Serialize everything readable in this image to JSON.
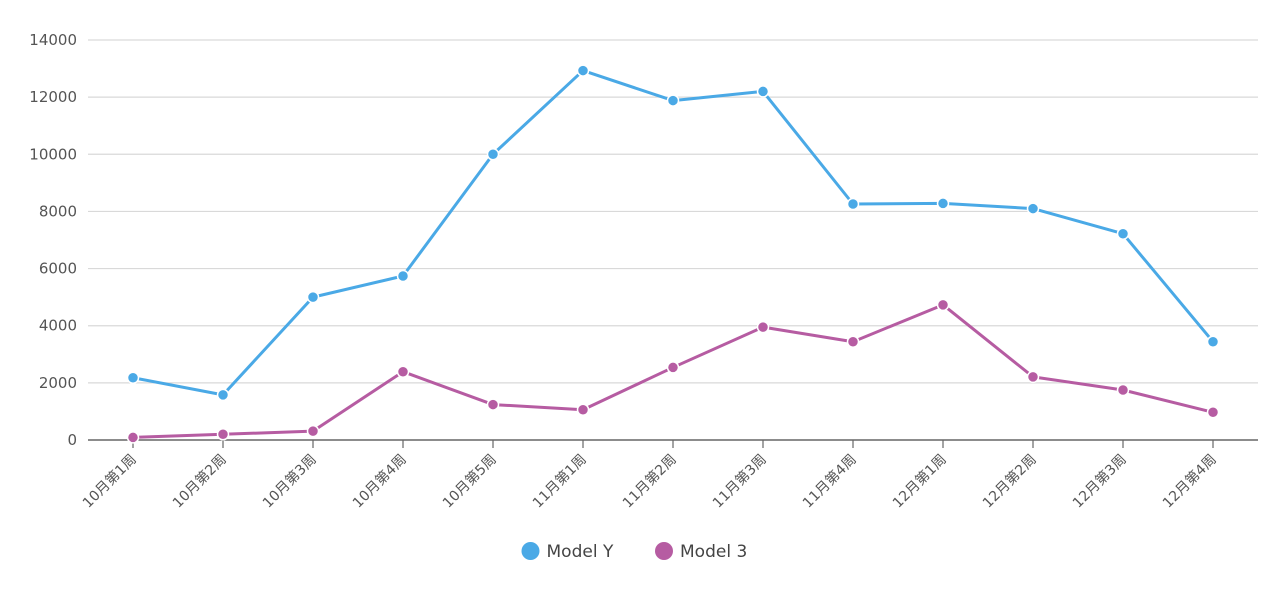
{
  "chart_data": {
    "type": "line",
    "title": "",
    "xlabel": "",
    "ylabel": "",
    "ylim": [
      0,
      14000
    ],
    "yticks": [
      0,
      2000,
      4000,
      6000,
      8000,
      10000,
      12000,
      14000
    ],
    "grid": true,
    "legend_position": "bottom-center",
    "categories": [
      "10月第1周",
      "10月第2周",
      "10月第3周",
      "10月第4周",
      "10月第5周",
      "11月第1周",
      "11月第2周",
      "11月第3周",
      "11月第4周",
      "12月第1周",
      "12月第2周",
      "12月第3周",
      "12月第4周"
    ],
    "series": [
      {
        "name": "Model Y",
        "color": "#4aa9e6",
        "values": [
          2180,
          1580,
          5000,
          5740,
          10000,
          12930,
          11880,
          12200,
          8260,
          8280,
          8100,
          7220,
          3440
        ]
      },
      {
        "name": "Model 3",
        "color": "#b65ca2",
        "values": [
          90,
          200,
          310,
          2390,
          1240,
          1060,
          2540,
          3950,
          3440,
          4730,
          2210,
          1750,
          970
        ]
      }
    ]
  }
}
